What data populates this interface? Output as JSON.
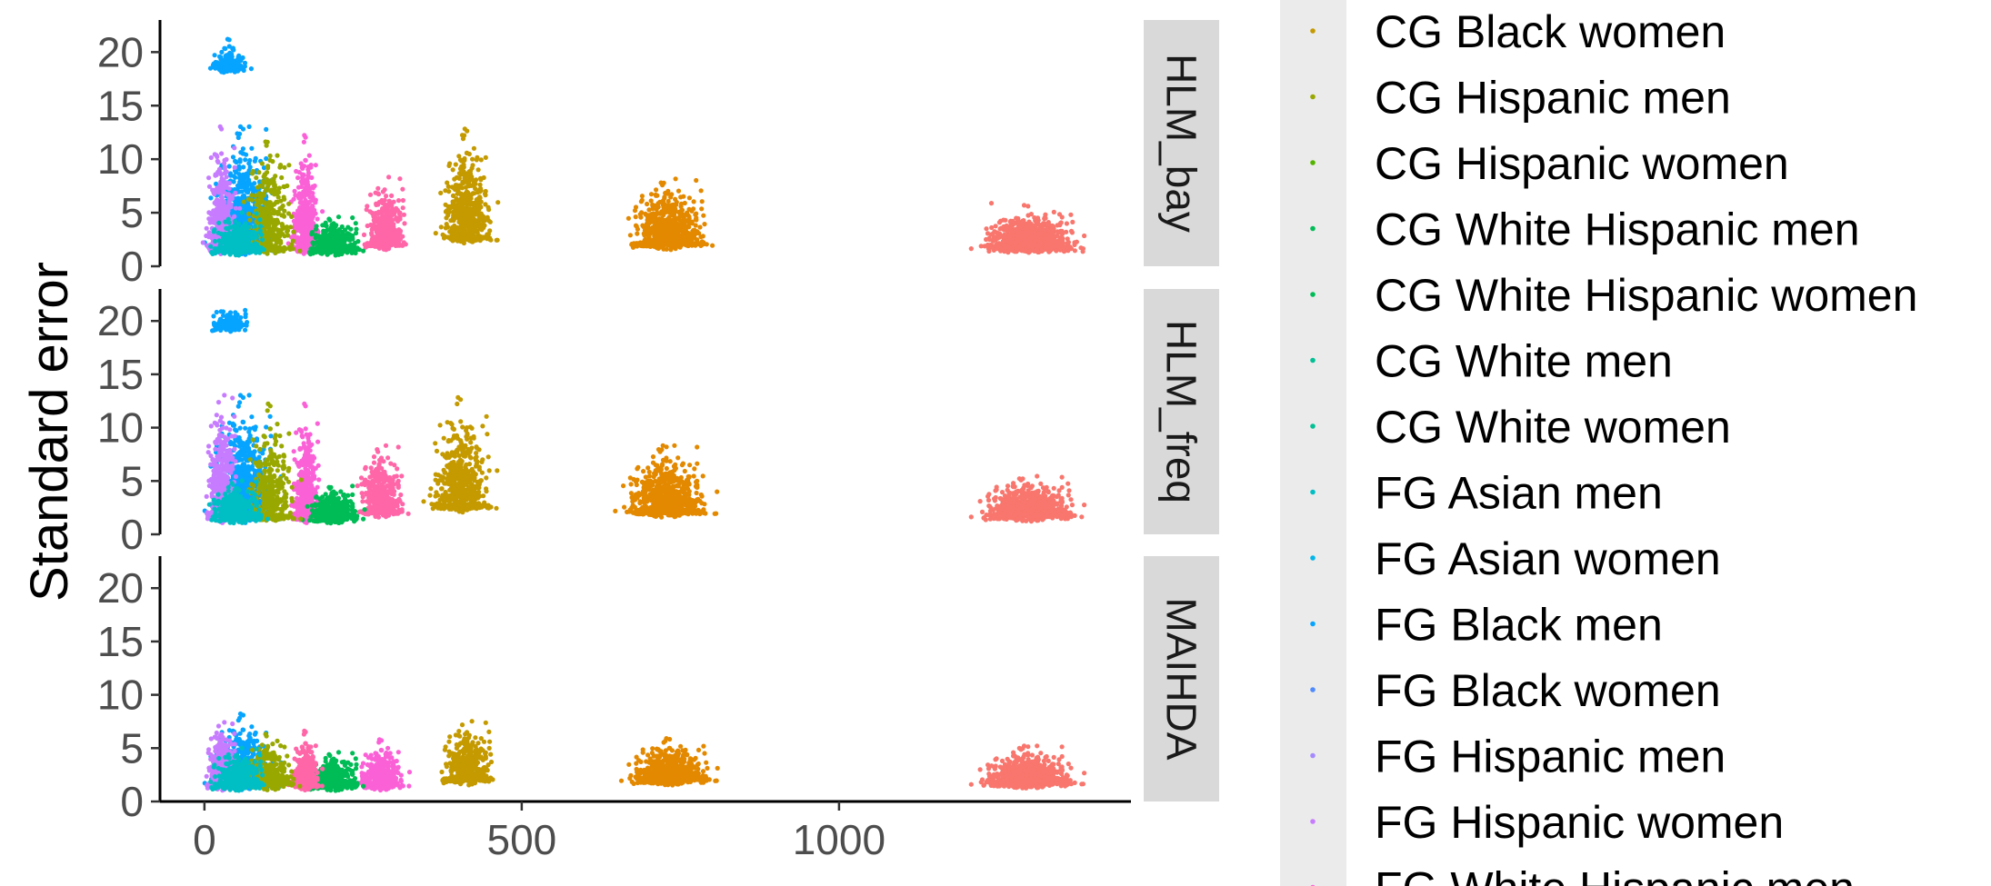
{
  "chart_data": {
    "type": "scatter",
    "ylabel": "Standard error",
    "xlabel": "",
    "x_ticks": [
      0,
      500,
      1000
    ],
    "y_ticks": [
      0,
      5,
      10,
      15,
      20
    ],
    "xlim": [
      -70,
      1460
    ],
    "ylim": [
      0,
      23
    ],
    "grid": false,
    "legend_position": "right",
    "panels": [
      "HLM_bay",
      "HLM_freq",
      "MAIHDA"
    ],
    "legend": [
      {
        "name": "CG Black women",
        "color": "#c49a00"
      },
      {
        "name": "CG Hispanic men",
        "color": "#99a800"
      },
      {
        "name": "CG Hispanic women",
        "color": "#53b400"
      },
      {
        "name": "CG White Hispanic men",
        "color": "#00bc56"
      },
      {
        "name": "CG White Hispanic women",
        "color": "#00c094"
      },
      {
        "name": "CG White men",
        "color": "#00bfc4"
      },
      {
        "name": "CG White women",
        "color": "#00b6eb"
      },
      {
        "name": "FG Asian men",
        "color": "#06a4ff"
      },
      {
        "name": "FG Asian women",
        "color": "#a58aff"
      },
      {
        "name": "FG Black men",
        "color": "#df70f8"
      },
      {
        "name": "FG Black women",
        "color": "#fb61d7"
      },
      {
        "name": "FG Hispanic men",
        "color": "#ff66a8"
      },
      {
        "name": "FG Hispanic women",
        "color": "#f8766d"
      },
      {
        "name": "FG White Hispanic men",
        "color": "#e38900"
      }
    ],
    "legend_key_colors": [
      "#c49a00",
      "#99a800",
      "#53b400",
      "#00bc56",
      "#00bc56",
      "#00c094",
      "#00c094",
      "#00bfc4",
      "#00b6eb",
      "#06a4ff",
      "#4f8bff",
      "#a58aff",
      "#c77cff",
      "#fb61d7"
    ],
    "legend_display_names": [
      "CG Black women",
      "CG Hispanic men",
      "CG Hispanic women",
      "CG White Hispanic men",
      "CG White Hispanic women",
      "CG White men",
      "CG White women",
      "FG Asian men",
      "FG Asian women",
      "FG Black men",
      "FG Black women",
      "FG Hispanic men",
      "FG Hispanic women",
      "FG White Hispanic men"
    ],
    "series": [
      {
        "name": "HLM_bay",
        "clusters": [
          {
            "color": "#f8766d",
            "x": [
              1200,
              1400
            ],
            "y": [
              1.2,
              6.8
            ],
            "n": 900
          },
          {
            "color": "#e38900",
            "x": [
              650,
              815
            ],
            "y": [
              1.5,
              9.8
            ],
            "n": 800
          },
          {
            "color": "#c49a00",
            "x": [
              360,
              470
            ],
            "y": [
              2.0,
              15.5
            ],
            "n": 600
          },
          {
            "color": "#ff66a8",
            "x": [
              240,
              330
            ],
            "y": [
              1.5,
              10.0
            ],
            "n": 450
          },
          {
            "color": "#fb61d7",
            "x": [
              130,
              190
            ],
            "y": [
              1.0,
              15.0
            ],
            "n": 500
          },
          {
            "color": "#00bc56",
            "x": [
              150,
              260
            ],
            "y": [
              1.0,
              5.5
            ],
            "n": 500
          },
          {
            "color": "#06a4ff",
            "x": [
              -5,
              130
            ],
            "y": [
              1.0,
              16.0
            ],
            "n": 900
          },
          {
            "color": "#c77cff",
            "x": [
              -5,
              60
            ],
            "y": [
              1.0,
              16.0
            ],
            "n": 500
          },
          {
            "color": "#99a800",
            "x": [
              50,
              160
            ],
            "y": [
              1.0,
              15.0
            ],
            "n": 400
          },
          {
            "color": "#00bfc4",
            "x": [
              -5,
              110
            ],
            "y": [
              1.0,
              6.0
            ],
            "n": 400
          },
          {
            "color": "#06a4ff",
            "x": [
              0,
              80
            ],
            "y": [
              18.0,
              22.0
            ],
            "n": 200
          }
        ]
      },
      {
        "name": "HLM_freq",
        "clusters": [
          {
            "color": "#f8766d",
            "x": [
              1200,
              1400
            ],
            "y": [
              1.2,
              6.5
            ],
            "n": 900
          },
          {
            "color": "#e38900",
            "x": [
              640,
              820
            ],
            "y": [
              1.5,
              10.0
            ],
            "n": 800
          },
          {
            "color": "#c49a00",
            "x": [
              340,
              470
            ],
            "y": [
              2.0,
              15.5
            ],
            "n": 600
          },
          {
            "color": "#ff66a8",
            "x": [
              230,
              330
            ],
            "y": [
              1.5,
              10.0
            ],
            "n": 450
          },
          {
            "color": "#fb61d7",
            "x": [
              130,
              190
            ],
            "y": [
              1.0,
              15.0
            ],
            "n": 500
          },
          {
            "color": "#00bc56",
            "x": [
              150,
              260
            ],
            "y": [
              1.0,
              5.5
            ],
            "n": 500
          },
          {
            "color": "#06a4ff",
            "x": [
              -5,
              130
            ],
            "y": [
              1.0,
              16.0
            ],
            "n": 900
          },
          {
            "color": "#c77cff",
            "x": [
              -5,
              60
            ],
            "y": [
              1.0,
              16.0
            ],
            "n": 500
          },
          {
            "color": "#99a800",
            "x": [
              50,
              160
            ],
            "y": [
              1.0,
              15.0
            ],
            "n": 400
          },
          {
            "color": "#00bfc4",
            "x": [
              -5,
              110
            ],
            "y": [
              1.0,
              6.0
            ],
            "n": 400
          },
          {
            "color": "#06a4ff",
            "x": [
              0,
              80
            ],
            "y": [
              19.0,
              22.0
            ],
            "n": 200
          }
        ]
      },
      {
        "name": "MAIHDA",
        "clusters": [
          {
            "color": "#f8766d",
            "x": [
              1200,
              1400
            ],
            "y": [
              1.2,
              6.2
            ],
            "n": 900
          },
          {
            "color": "#e38900",
            "x": [
              650,
              820
            ],
            "y": [
              1.5,
              7.0
            ],
            "n": 800
          },
          {
            "color": "#c49a00",
            "x": [
              360,
              470
            ],
            "y": [
              1.5,
              9.0
            ],
            "n": 500
          },
          {
            "color": "#fb61d7",
            "x": [
              230,
              330
            ],
            "y": [
              1.0,
              7.0
            ],
            "n": 450
          },
          {
            "color": "#00bc56",
            "x": [
              150,
              260
            ],
            "y": [
              1.0,
              5.5
            ],
            "n": 500
          },
          {
            "color": "#06a4ff",
            "x": [
              -5,
              130
            ],
            "y": [
              1.0,
              10.0
            ],
            "n": 700
          },
          {
            "color": "#c77cff",
            "x": [
              -5,
              60
            ],
            "y": [
              1.0,
              9.0
            ],
            "n": 500
          },
          {
            "color": "#ff66a8",
            "x": [
              130,
              190
            ],
            "y": [
              1.0,
              8.0
            ],
            "n": 400
          },
          {
            "color": "#99a800",
            "x": [
              50,
              160
            ],
            "y": [
              1.0,
              8.0
            ],
            "n": 300
          },
          {
            "color": "#00bfc4",
            "x": [
              -5,
              110
            ],
            "y": [
              1.0,
              6.0
            ],
            "n": 400
          }
        ]
      }
    ]
  }
}
